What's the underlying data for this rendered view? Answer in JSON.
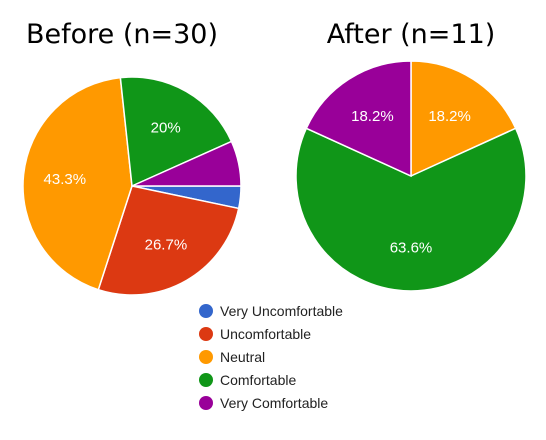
{
  "categories": [
    "Very Uncomfortable",
    "Uncomfortable",
    "Neutral",
    "Comfortable",
    "Very Comfortable"
  ],
  "colors": {
    "Very Uncomfortable": "#3366cc",
    "Uncomfortable": "#dc3912",
    "Neutral": "#ff9900",
    "Comfortable": "#109618",
    "Very Comfortable": "#990099"
  },
  "chart_data": [
    {
      "type": "pie",
      "title": "Before (n=30)",
      "labels": [
        "Very Uncomfortable",
        "Uncomfortable",
        "Neutral",
        "Comfortable",
        "Very Comfortable"
      ],
      "values": [
        3.3,
        26.7,
        43.3,
        20,
        6.7
      ],
      "data_labels": [
        "",
        "26.7%",
        "43.3%",
        "20%",
        ""
      ]
    },
    {
      "type": "pie",
      "title": "After (n=11)",
      "labels": [
        "Very Uncomfortable",
        "Uncomfortable",
        "Neutral",
        "Comfortable",
        "Very Comfortable"
      ],
      "values": [
        0,
        0,
        18.2,
        63.6,
        18.2
      ],
      "data_labels": [
        "",
        "",
        "18.2%",
        "63.6%",
        "18.2%"
      ]
    }
  ],
  "legend": {
    "position": "bottom",
    "entries": [
      "Very Uncomfortable",
      "Uncomfortable",
      "Neutral",
      "Comfortable",
      "Very Comfortable"
    ]
  }
}
